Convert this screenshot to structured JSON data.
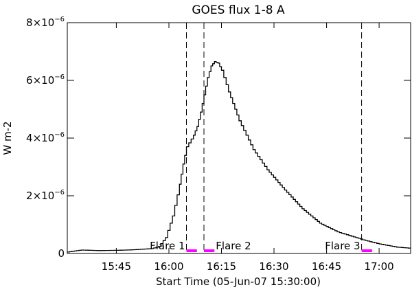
{
  "chart_data": {
    "type": "line",
    "title": "GOES flux 1-8 A",
    "xlabel": "Start Time (05-Jun-07 15:30:00)",
    "ylabel": "W m-2",
    "x_unit": "UT time (HH:MM)",
    "xlim": [
      "15:31",
      "17:09"
    ],
    "ylim": [
      0,
      8e-06
    ],
    "x_ticks": [
      {
        "t": "15:45",
        "label": "15:45"
      },
      {
        "t": "16:00",
        "label": "16:00"
      },
      {
        "t": "16:15",
        "label": "16:15"
      },
      {
        "t": "16:30",
        "label": "16:30"
      },
      {
        "t": "16:45",
        "label": "16:45"
      },
      {
        "t": "17:00",
        "label": "17:00"
      }
    ],
    "y_ticks": [
      {
        "value": 0,
        "mant": "0",
        "exp": ""
      },
      {
        "value": 2e-06,
        "mant": "2×10",
        "exp": "−6"
      },
      {
        "value": 4e-06,
        "mant": "4×10",
        "exp": "−6"
      },
      {
        "value": 6e-06,
        "mant": "6×10",
        "exp": "−6"
      },
      {
        "value": 8e-06,
        "mant": "8×10",
        "exp": "−6"
      }
    ],
    "series": [
      {
        "color": "#000000",
        "points": [
          [
            "15:31",
            5e-08
          ],
          [
            "15:35",
            1.2e-07
          ],
          [
            "15:40",
            1e-07
          ],
          [
            "15:45",
            1.1e-07
          ],
          [
            "15:50",
            1.3e-07
          ],
          [
            "15:55",
            1.7e-07
          ],
          [
            "15:57",
            2.4e-07
          ],
          [
            "15:59",
            5.5e-07
          ],
          [
            "16:01",
            1.3e-06
          ],
          [
            "16:03",
            2.4e-06
          ],
          [
            "16:04",
            3.1e-06
          ],
          [
            "16:05",
            3.7e-06
          ],
          [
            "16:07",
            4.1e-06
          ],
          [
            "16:08",
            4.4e-06
          ],
          [
            "16:09",
            4.9e-06
          ],
          [
            "16:10",
            5.5e-06
          ],
          [
            "16:11",
            6.1e-06
          ],
          [
            "16:12",
            6.5e-06
          ],
          [
            "16:13",
            6.65e-06
          ],
          [
            "16:14",
            6.6e-06
          ],
          [
            "16:15",
            6.35e-06
          ],
          [
            "16:17",
            5.6e-06
          ],
          [
            "16:20",
            4.6e-06
          ],
          [
            "16:24",
            3.6e-06
          ],
          [
            "16:28",
            2.9e-06
          ],
          [
            "16:33",
            2.2e-06
          ],
          [
            "16:38",
            1.55e-06
          ],
          [
            "16:43",
            1.05e-06
          ],
          [
            "16:48",
            7.5e-07
          ],
          [
            "16:52",
            6e-07
          ],
          [
            "16:56",
            4.5e-07
          ],
          [
            "17:00",
            3.3e-07
          ],
          [
            "17:05",
            2.2e-07
          ],
          [
            "17:09",
            1.8e-07
          ]
        ]
      }
    ],
    "vlines": [
      "16:05",
      "16:10",
      "16:55"
    ],
    "flares": [
      {
        "label": "Flare 1",
        "start": "16:05",
        "end": "16:08"
      },
      {
        "label": "Flare 2",
        "start": "16:10",
        "end": "16:13"
      },
      {
        "label": "Flare 3",
        "start": "16:55",
        "end": "16:58"
      }
    ],
    "flare_marker_color": "#ff00ff",
    "grid": false,
    "legend": "none"
  }
}
